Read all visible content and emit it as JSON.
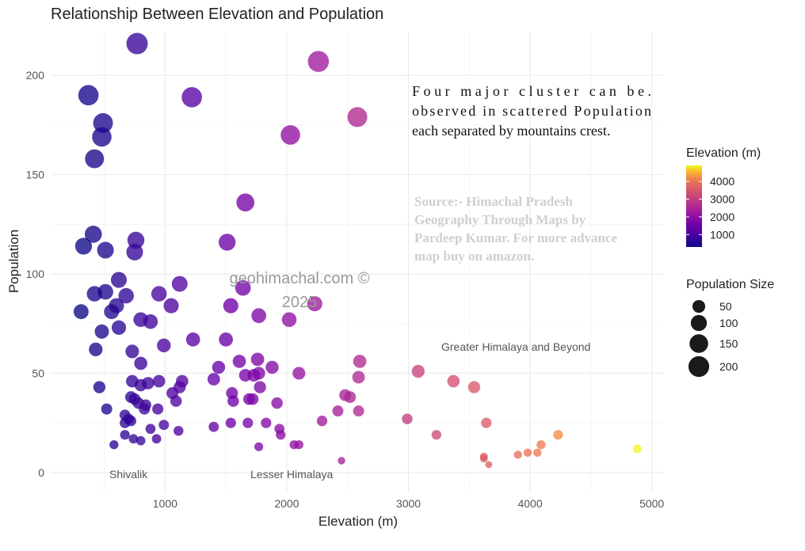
{
  "chart_data": {
    "type": "scatter",
    "title": "Relationship Between Elevation and Population",
    "xlabel": "Elevation (m)",
    "ylabel": "Population",
    "xlim": [
      60,
      5100
    ],
    "ylim": [
      -10,
      222
    ],
    "xticks": [
      1000,
      2000,
      3000,
      4000,
      5000
    ],
    "yticks": [
      0,
      50,
      100,
      150,
      200
    ],
    "xtick_labels": [
      "1000",
      "2000",
      "3000",
      "4000",
      "5000"
    ],
    "ytick_labels": [
      "0",
      "50",
      "100",
      "150",
      "200"
    ],
    "grid": true,
    "legend_placement": "right",
    "color_legend": {
      "title": "Elevation (m)",
      "range": [
        300,
        4900
      ],
      "ticks": [
        1000,
        2000,
        3000,
        4000
      ],
      "tick_labels": [
        "1000",
        "2000",
        "3000",
        "4000"
      ],
      "colormap": "plasma"
    },
    "size_legend": {
      "title": "Population Size",
      "values": [
        50,
        100,
        150,
        200
      ],
      "labels": [
        "50",
        "100",
        "150",
        "200"
      ]
    },
    "points": [
      {
        "x": 770,
        "y": 216
      },
      {
        "x": 2260,
        "y": 207
      },
      {
        "x": 370,
        "y": 190
      },
      {
        "x": 1220,
        "y": 189
      },
      {
        "x": 490,
        "y": 176
      },
      {
        "x": 2580,
        "y": 179
      },
      {
        "x": 480,
        "y": 169
      },
      {
        "x": 2030,
        "y": 170
      },
      {
        "x": 420,
        "y": 158
      },
      {
        "x": 1660,
        "y": 136
      },
      {
        "x": 410,
        "y": 120
      },
      {
        "x": 330,
        "y": 114
      },
      {
        "x": 760,
        "y": 117
      },
      {
        "x": 510,
        "y": 112
      },
      {
        "x": 750,
        "y": 111
      },
      {
        "x": 1510,
        "y": 116
      },
      {
        "x": 620,
        "y": 97
      },
      {
        "x": 420,
        "y": 90
      },
      {
        "x": 1120,
        "y": 95
      },
      {
        "x": 950,
        "y": 90
      },
      {
        "x": 510,
        "y": 91
      },
      {
        "x": 680,
        "y": 89
      },
      {
        "x": 1640,
        "y": 93
      },
      {
        "x": 600,
        "y": 84
      },
      {
        "x": 1050,
        "y": 84
      },
      {
        "x": 1540,
        "y": 84
      },
      {
        "x": 2230,
        "y": 85
      },
      {
        "x": 310,
        "y": 81
      },
      {
        "x": 560,
        "y": 81
      },
      {
        "x": 800,
        "y": 77
      },
      {
        "x": 880,
        "y": 76
      },
      {
        "x": 1770,
        "y": 79
      },
      {
        "x": 2020,
        "y": 77
      },
      {
        "x": 620,
        "y": 73
      },
      {
        "x": 480,
        "y": 71
      },
      {
        "x": 1230,
        "y": 67
      },
      {
        "x": 1500,
        "y": 67
      },
      {
        "x": 990,
        "y": 64
      },
      {
        "x": 730,
        "y": 61
      },
      {
        "x": 430,
        "y": 62
      },
      {
        "x": 800,
        "y": 55
      },
      {
        "x": 1610,
        "y": 56
      },
      {
        "x": 2600,
        "y": 56
      },
      {
        "x": 1440,
        "y": 53
      },
      {
        "x": 1760,
        "y": 57
      },
      {
        "x": 1880,
        "y": 53
      },
      {
        "x": 2100,
        "y": 50
      },
      {
        "x": 3080,
        "y": 51
      },
      {
        "x": 1660,
        "y": 49
      },
      {
        "x": 1730,
        "y": 49
      },
      {
        "x": 1770,
        "y": 50
      },
      {
        "x": 2590,
        "y": 48
      },
      {
        "x": 860,
        "y": 45
      },
      {
        "x": 950,
        "y": 46
      },
      {
        "x": 1140,
        "y": 46
      },
      {
        "x": 730,
        "y": 46
      },
      {
        "x": 1400,
        "y": 47
      },
      {
        "x": 3370,
        "y": 46
      },
      {
        "x": 3540,
        "y": 43
      },
      {
        "x": 460,
        "y": 43
      },
      {
        "x": 800,
        "y": 44
      },
      {
        "x": 1120,
        "y": 43
      },
      {
        "x": 1780,
        "y": 43
      },
      {
        "x": 1060,
        "y": 40
      },
      {
        "x": 1550,
        "y": 40
      },
      {
        "x": 2480,
        "y": 39
      },
      {
        "x": 2520,
        "y": 38
      },
      {
        "x": 720,
        "y": 38
      },
      {
        "x": 750,
        "y": 37
      },
      {
        "x": 1090,
        "y": 36
      },
      {
        "x": 1560,
        "y": 36
      },
      {
        "x": 1690,
        "y": 37
      },
      {
        "x": 1720,
        "y": 37
      },
      {
        "x": 1920,
        "y": 35
      },
      {
        "x": 780,
        "y": 35
      },
      {
        "x": 840,
        "y": 34
      },
      {
        "x": 830,
        "y": 32
      },
      {
        "x": 940,
        "y": 32
      },
      {
        "x": 520,
        "y": 32
      },
      {
        "x": 2420,
        "y": 31
      },
      {
        "x": 2590,
        "y": 31
      },
      {
        "x": 670,
        "y": 29
      },
      {
        "x": 700,
        "y": 27
      },
      {
        "x": 720,
        "y": 26
      },
      {
        "x": 670,
        "y": 25
      },
      {
        "x": 2990,
        "y": 27
      },
      {
        "x": 2290,
        "y": 26
      },
      {
        "x": 1540,
        "y": 25
      },
      {
        "x": 1680,
        "y": 25
      },
      {
        "x": 1830,
        "y": 25
      },
      {
        "x": 3640,
        "y": 25
      },
      {
        "x": 990,
        "y": 24
      },
      {
        "x": 1400,
        "y": 23
      },
      {
        "x": 1940,
        "y": 22
      },
      {
        "x": 880,
        "y": 22
      },
      {
        "x": 1110,
        "y": 21
      },
      {
        "x": 670,
        "y": 19
      },
      {
        "x": 1950,
        "y": 19
      },
      {
        "x": 3230,
        "y": 19
      },
      {
        "x": 4230,
        "y": 19
      },
      {
        "x": 740,
        "y": 17
      },
      {
        "x": 800,
        "y": 16
      },
      {
        "x": 930,
        "y": 17
      },
      {
        "x": 580,
        "y": 14
      },
      {
        "x": 1770,
        "y": 13
      },
      {
        "x": 2060,
        "y": 14
      },
      {
        "x": 2100,
        "y": 14
      },
      {
        "x": 4090,
        "y": 14
      },
      {
        "x": 4880,
        "y": 12
      },
      {
        "x": 3980,
        "y": 10
      },
      {
        "x": 4060,
        "y": 10
      },
      {
        "x": 3900,
        "y": 9
      },
      {
        "x": 3620,
        "y": 8
      },
      {
        "x": 3620,
        "y": 7
      },
      {
        "x": 2450,
        "y": 6
      },
      {
        "x": 3660,
        "y": 4
      }
    ]
  },
  "annotations": {
    "note_lines": [
      "Four major cluster can be.",
      "observed in scattered Population",
      "each separated by mountains crest."
    ],
    "source_lines": [
      "Source:- Himachal Pradesh",
      "Geography Through Maps by",
      "Pardeep Kumar. For more advance",
      "map buy on amazon."
    ],
    "watermark_lines": [
      "geohimachal.com ©",
      "2025"
    ],
    "region_labels": {
      "shivalik": "Shivalik",
      "lesser_himalaya": "Lesser Himalaya",
      "greater_himalaya": "Greater Himalaya and Beyond"
    }
  }
}
